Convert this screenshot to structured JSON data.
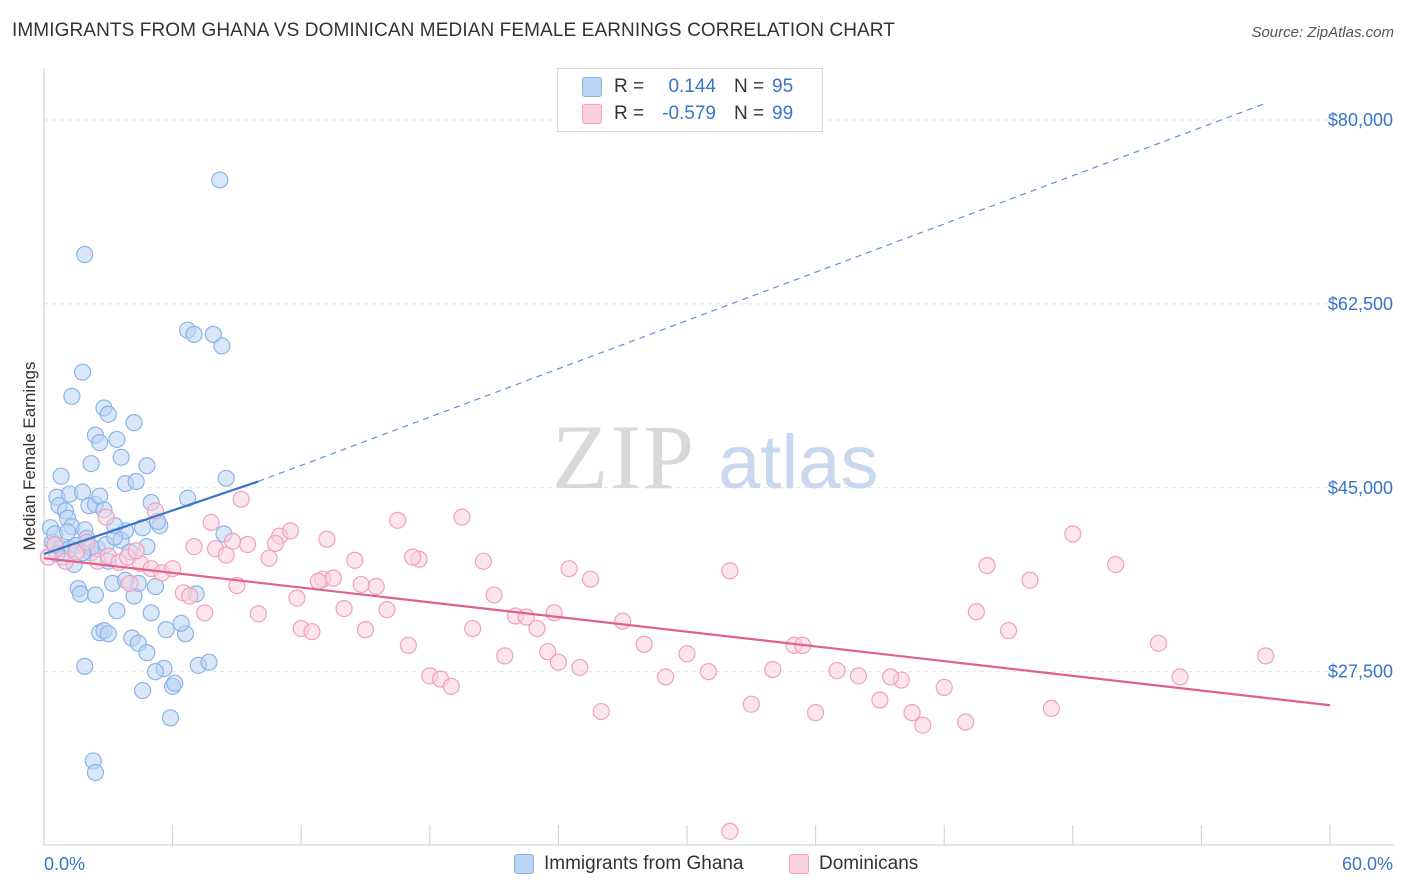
{
  "title": "IMMIGRANTS FROM GHANA VS DOMINICAN MEDIAN FEMALE EARNINGS CORRELATION CHART",
  "source": "Source: ZipAtlas.com",
  "watermark": {
    "zip": "ZIP",
    "atlas": "atlas"
  },
  "legend": {
    "r_label": "R =",
    "n_label": "N =",
    "rows": [
      {
        "name": "Immigrants from Ghana",
        "r": "0.144",
        "n": "95",
        "color": "#8ab4e8",
        "fill": "#bcd4f4"
      },
      {
        "name": "Dominicans",
        "r": "-0.579",
        "n": "99",
        "color": "#f0a0bc",
        "fill": "#f9d0de"
      }
    ]
  },
  "chart_data": {
    "type": "scatter",
    "title": "IMMIGRANTS FROM GHANA VS DOMINICAN MEDIAN FEMALE EARNINGS CORRELATION CHART",
    "xlabel": "",
    "ylabel": "Median Female Earnings",
    "xlim": [
      0,
      60
    ],
    "ylim": [
      11000,
      84000
    ],
    "x_tick_labels": [
      "0.0%",
      "60.0%"
    ],
    "y_ticks": [
      {
        "value": 27500,
        "label": "$27,500"
      },
      {
        "value": 45000,
        "label": "$45,000"
      },
      {
        "value": 62500,
        "label": "$62,500"
      },
      {
        "value": 80000,
        "label": "$80,000"
      }
    ],
    "grid": true,
    "series": [
      {
        "name": "Immigrants from Ghana",
        "color": "#3a74c7",
        "point_color": "#8ab4e8",
        "trend": {
          "x0": 0,
          "y0": 38700,
          "x1": 10,
          "y1": 45600,
          "dashed_to_x": 57,
          "dashed_to_y": 81600
        },
        "points": [
          [
            0.3,
            41200
          ],
          [
            0.4,
            39800
          ],
          [
            0.5,
            40600
          ],
          [
            0.6,
            44100
          ],
          [
            0.7,
            43300
          ],
          [
            0.8,
            46100
          ],
          [
            0.9,
            38400
          ],
          [
            1.0,
            42800
          ],
          [
            1.1,
            42100
          ],
          [
            1.2,
            44400
          ],
          [
            1.3,
            41300
          ],
          [
            1.4,
            37700
          ],
          [
            1.5,
            39500
          ],
          [
            1.6,
            35400
          ],
          [
            1.7,
            34900
          ],
          [
            1.8,
            44600
          ],
          [
            1.9,
            41000
          ],
          [
            2.0,
            40200
          ],
          [
            2.1,
            43300
          ],
          [
            2.2,
            38800
          ],
          [
            2.4,
            43400
          ],
          [
            2.6,
            44200
          ],
          [
            2.8,
            42900
          ],
          [
            3.0,
            38000
          ],
          [
            3.2,
            35900
          ],
          [
            3.4,
            33300
          ],
          [
            3.6,
            40000
          ],
          [
            3.8,
            40900
          ],
          [
            4.0,
            38900
          ],
          [
            4.2,
            34700
          ],
          [
            4.4,
            35900
          ],
          [
            4.6,
            41200
          ],
          [
            4.8,
            39400
          ],
          [
            5.0,
            33100
          ],
          [
            5.2,
            35600
          ],
          [
            5.4,
            41400
          ],
          [
            5.6,
            27800
          ],
          [
            0.5,
            39500
          ],
          [
            0.8,
            39200
          ],
          [
            1.2,
            39200
          ],
          [
            1.5,
            39500
          ],
          [
            2.2,
            39300
          ],
          [
            2.5,
            39200
          ],
          [
            1.8,
            38800
          ],
          [
            2.9,
            39600
          ],
          [
            3.3,
            40300
          ],
          [
            1.1,
            40800
          ],
          [
            0.6,
            38700
          ],
          [
            1.3,
            53700
          ],
          [
            1.8,
            56000
          ],
          [
            2.2,
            47300
          ],
          [
            2.4,
            50000
          ],
          [
            2.6,
            49300
          ],
          [
            2.8,
            52600
          ],
          [
            3.0,
            52000
          ],
          [
            3.4,
            49600
          ],
          [
            3.6,
            47900
          ],
          [
            3.8,
            45400
          ],
          [
            4.2,
            51200
          ],
          [
            4.3,
            45600
          ],
          [
            4.8,
            47100
          ],
          [
            5.0,
            43600
          ],
          [
            6.7,
            60000
          ],
          [
            7.0,
            59600
          ],
          [
            8.2,
            74300
          ],
          [
            8.3,
            58500
          ],
          [
            7.9,
            59600
          ],
          [
            8.5,
            45900
          ],
          [
            8.4,
            40600
          ],
          [
            1.9,
            67200
          ],
          [
            2.4,
            34800
          ],
          [
            3.8,
            36200
          ],
          [
            4.1,
            30700
          ],
          [
            4.4,
            30200
          ],
          [
            4.8,
            29300
          ],
          [
            5.2,
            27500
          ],
          [
            6.0,
            26100
          ],
          [
            6.6,
            31100
          ],
          [
            7.2,
            28100
          ],
          [
            1.9,
            28000
          ],
          [
            2.6,
            31200
          ],
          [
            2.8,
            31400
          ],
          [
            3.0,
            31100
          ],
          [
            4.6,
            25700
          ],
          [
            5.9,
            23100
          ],
          [
            2.3,
            19000
          ],
          [
            2.4,
            17900
          ],
          [
            6.1,
            26400
          ],
          [
            7.1,
            34900
          ],
          [
            7.7,
            28400
          ],
          [
            6.4,
            32100
          ],
          [
            5.7,
            31500
          ],
          [
            3.3,
            41400
          ],
          [
            6.7,
            44000
          ],
          [
            5.3,
            41800
          ]
        ]
      },
      {
        "name": "Dominicans",
        "color": "#e06090",
        "point_color": "#f0a0bc",
        "trend": {
          "x0": 0,
          "y0": 38300,
          "x1": 60,
          "y1": 24300
        },
        "points": [
          [
            0.2,
            38400
          ],
          [
            0.5,
            39600
          ],
          [
            1.0,
            38000
          ],
          [
            1.5,
            38900
          ],
          [
            2.0,
            39800
          ],
          [
            2.5,
            38000
          ],
          [
            3.0,
            38500
          ],
          [
            3.5,
            37900
          ],
          [
            4.0,
            35900
          ],
          [
            4.5,
            37800
          ],
          [
            5.0,
            37300
          ],
          [
            5.5,
            36900
          ],
          [
            6.0,
            37300
          ],
          [
            6.5,
            35000
          ],
          [
            7.0,
            39400
          ],
          [
            7.5,
            33100
          ],
          [
            8.0,
            39200
          ],
          [
            8.5,
            38600
          ],
          [
            9.0,
            35700
          ],
          [
            9.5,
            39600
          ],
          [
            10.0,
            33000
          ],
          [
            10.5,
            38300
          ],
          [
            11.0,
            40400
          ],
          [
            11.5,
            40900
          ],
          [
            12.0,
            31600
          ],
          [
            12.5,
            31300
          ],
          [
            13.0,
            36300
          ],
          [
            13.5,
            36400
          ],
          [
            14.0,
            33500
          ],
          [
            14.5,
            38100
          ],
          [
            15.0,
            31500
          ],
          [
            15.5,
            35600
          ],
          [
            16.0,
            33400
          ],
          [
            16.5,
            41900
          ],
          [
            17.0,
            30000
          ],
          [
            17.5,
            38200
          ],
          [
            18.0,
            27100
          ],
          [
            18.5,
            26800
          ],
          [
            19.0,
            26100
          ],
          [
            19.5,
            42200
          ],
          [
            20.0,
            31600
          ],
          [
            20.5,
            38000
          ],
          [
            21.0,
            34800
          ],
          [
            21.5,
            29000
          ],
          [
            22.0,
            32800
          ],
          [
            22.5,
            32700
          ],
          [
            23.0,
            31600
          ],
          [
            23.5,
            29400
          ],
          [
            24.0,
            28400
          ],
          [
            24.5,
            37300
          ],
          [
            25.0,
            27900
          ],
          [
            25.5,
            36300
          ],
          [
            26.0,
            23700
          ],
          [
            27.0,
            32300
          ],
          [
            28.0,
            30100
          ],
          [
            29.0,
            27000
          ],
          [
            30.0,
            29200
          ],
          [
            31.0,
            27500
          ],
          [
            32.0,
            37100
          ],
          [
            33.0,
            24400
          ],
          [
            34.0,
            27700
          ],
          [
            35.0,
            30000
          ],
          [
            36.0,
            23600
          ],
          [
            37.0,
            27600
          ],
          [
            38.0,
            27100
          ],
          [
            39.0,
            24800
          ],
          [
            40.0,
            26700
          ],
          [
            41.0,
            22400
          ],
          [
            42.0,
            26000
          ],
          [
            43.0,
            22700
          ],
          [
            44.0,
            37600
          ],
          [
            45.0,
            31400
          ],
          [
            46.0,
            36200
          ],
          [
            47.0,
            24000
          ],
          [
            48.0,
            40600
          ],
          [
            50.0,
            37700
          ],
          [
            52.0,
            30200
          ],
          [
            53.0,
            27000
          ],
          [
            57.0,
            29000
          ],
          [
            32.0,
            12300
          ],
          [
            40.5,
            23600
          ],
          [
            43.5,
            33200
          ],
          [
            35.4,
            30000
          ],
          [
            39.5,
            27000
          ],
          [
            23.8,
            33100
          ],
          [
            17.2,
            38400
          ],
          [
            14.8,
            35800
          ],
          [
            12.8,
            36100
          ],
          [
            9.2,
            43900
          ],
          [
            6.8,
            34700
          ],
          [
            5.2,
            42800
          ],
          [
            3.9,
            38400
          ],
          [
            2.9,
            42200
          ],
          [
            8.8,
            39900
          ],
          [
            13.2,
            40100
          ],
          [
            10.8,
            39700
          ],
          [
            7.8,
            41700
          ],
          [
            4.3,
            39000
          ],
          [
            11.8,
            34500
          ]
        ]
      }
    ]
  }
}
